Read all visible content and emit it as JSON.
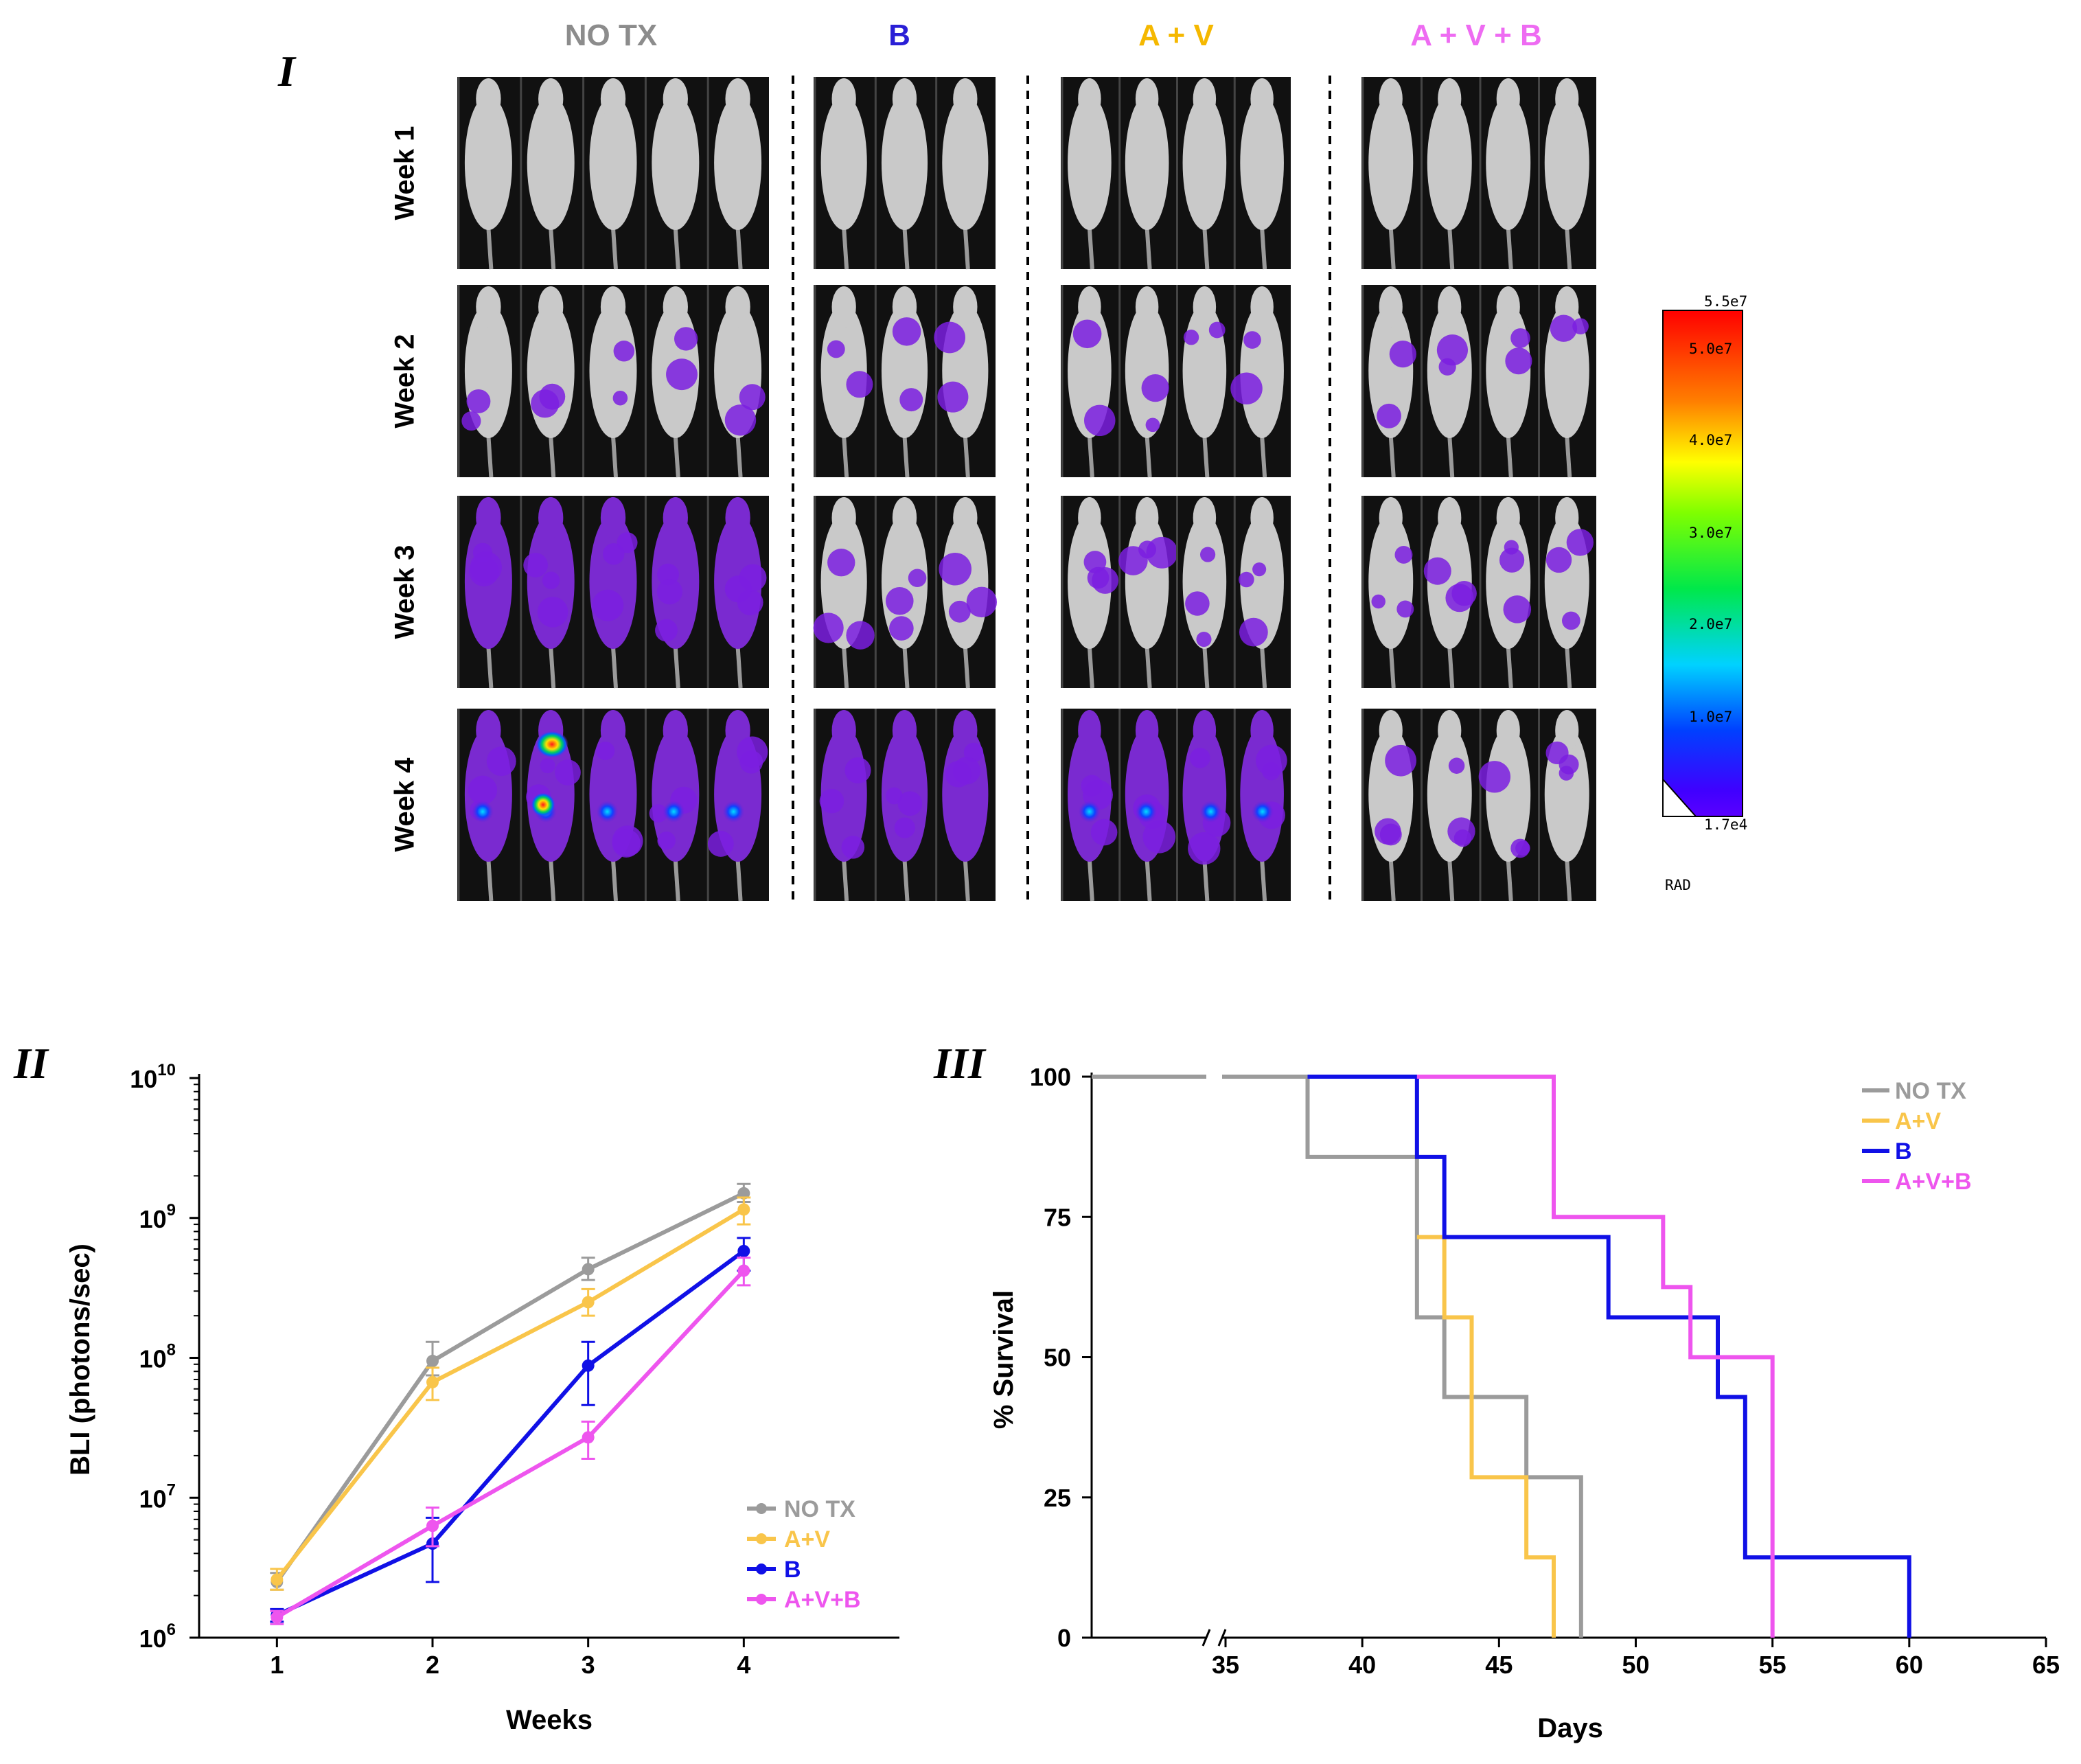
{
  "panel_I": {
    "label": "I",
    "groups": [
      {
        "name": "NO TX",
        "color": "#8c8c8c",
        "mice": 5
      },
      {
        "name": "B",
        "color": "#2a1fd6",
        "mice": 3
      },
      {
        "name": "A + V",
        "color": "#f5b800",
        "mice": 4
      },
      {
        "name": "A + V + B",
        "color": "#ee6bf2",
        "mice": 4
      }
    ],
    "rows": [
      "Week 1",
      "Week 2",
      "Week 3",
      "Week 4"
    ],
    "colorbar": {
      "ticks": [
        "5.5e7",
        "5.0e7",
        "4.0e7",
        "3.0e7",
        "2.0e7",
        "1.0e7",
        "1.7e4"
      ],
      "unit": "RAD"
    }
  },
  "chart_data": [
    {
      "id": "II",
      "type": "line",
      "panel_label": "II",
      "xlabel": "Weeks",
      "ylabel": "BLI (photons/sec)",
      "yscale": "log",
      "ylim": [
        1000000,
        10000000000
      ],
      "yticks": [
        {
          "value": 1000000,
          "base": "10",
          "exp": "6"
        },
        {
          "value": 10000000,
          "base": "10",
          "exp": "7"
        },
        {
          "value": 100000000,
          "base": "10",
          "exp": "8"
        },
        {
          "value": 1000000000,
          "base": "10",
          "exp": "9"
        },
        {
          "value": 10000000000,
          "base": "10",
          "exp": "10"
        }
      ],
      "x": [
        1,
        2,
        3,
        4
      ],
      "xlim": [
        0.5,
        5.0
      ],
      "legend_position": "bottom-right",
      "series": [
        {
          "name": "NO TX",
          "color": "#9b9b9b",
          "values": [
            2500000,
            95000000,
            430000000,
            1500000000
          ],
          "err_low": [
            2200000,
            75000000,
            360000000,
            1300000000
          ],
          "err_high": [
            2900000,
            130000000,
            520000000,
            1750000000
          ]
        },
        {
          "name": "A+V",
          "color": "#f9c54a",
          "values": [
            2600000,
            67000000,
            250000000,
            1150000000
          ],
          "err_low": [
            2200000,
            50000000,
            200000000,
            900000000
          ],
          "err_high": [
            3100000,
            85000000,
            310000000,
            1400000000
          ]
        },
        {
          "name": "B",
          "color": "#1010e6",
          "values": [
            1450000,
            4700000,
            88000000,
            580000000
          ],
          "err_low": [
            1300000,
            2500000,
            46000000,
            420000000
          ],
          "err_high": [
            1600000,
            7200000,
            130000000,
            720000000
          ]
        },
        {
          "name": "A+V+B",
          "color": "#ee55ee",
          "values": [
            1400000,
            6300000,
            27000000,
            420000000
          ],
          "err_low": [
            1250000,
            4500000,
            19000000,
            330000000
          ],
          "err_high": [
            1550000,
            8500000,
            35000000,
            520000000
          ]
        }
      ]
    },
    {
      "id": "III",
      "type": "line",
      "step": true,
      "panel_label": "III",
      "xlabel": "Days",
      "ylabel": "% Survival",
      "xlim": [
        30,
        65
      ],
      "axis_break_after": 35,
      "xticks": [
        35,
        40,
        45,
        50,
        55,
        60,
        65
      ],
      "ylim": [
        0,
        100
      ],
      "yticks": [
        0,
        25,
        50,
        75,
        100
      ],
      "legend_position": "top-right",
      "series": [
        {
          "name": "NO TX",
          "color": "#9b9b9b",
          "points": [
            [
              30,
              100
            ],
            [
              38,
              100
            ],
            [
              38,
              85.7
            ],
            [
              42,
              85.7
            ],
            [
              42,
              57.1
            ],
            [
              43,
              57.1
            ],
            [
              43,
              42.9
            ],
            [
              46,
              42.9
            ],
            [
              46,
              28.6
            ],
            [
              48,
              28.6
            ],
            [
              48,
              0
            ]
          ]
        },
        {
          "name": "A+V",
          "color": "#f9c54a",
          "points": [
            [
              42,
              71.4
            ],
            [
              43,
              71.4
            ],
            [
              43,
              57.1
            ],
            [
              44,
              57.1
            ],
            [
              44,
              28.6
            ],
            [
              46,
              28.6
            ],
            [
              46,
              14.3
            ],
            [
              47,
              14.3
            ],
            [
              47,
              0
            ]
          ]
        },
        {
          "name": "B",
          "color": "#1010e6",
          "points": [
            [
              38,
              100
            ],
            [
              42,
              100
            ],
            [
              42,
              85.7
            ],
            [
              43,
              85.7
            ],
            [
              43,
              71.4
            ],
            [
              49,
              71.4
            ],
            [
              49,
              57.1
            ],
            [
              53,
              57.1
            ],
            [
              53,
              42.9
            ],
            [
              54,
              42.9
            ],
            [
              54,
              14.3
            ],
            [
              60,
              14.3
            ],
            [
              60,
              0
            ]
          ]
        },
        {
          "name": "A+V+B",
          "color": "#ee55ee",
          "points": [
            [
              42,
              100
            ],
            [
              47,
              100
            ],
            [
              47,
              75
            ],
            [
              51,
              75
            ],
            [
              51,
              62.5
            ],
            [
              52,
              62.5
            ],
            [
              52,
              50
            ],
            [
              55,
              50
            ],
            [
              55,
              0
            ]
          ]
        }
      ]
    }
  ]
}
